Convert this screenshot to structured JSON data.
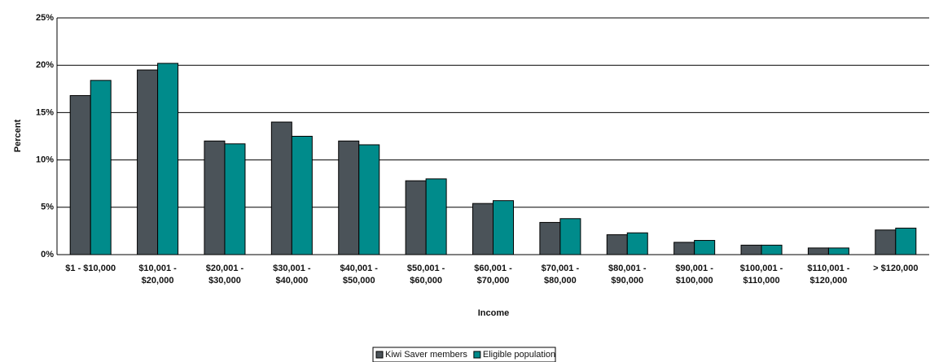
{
  "chart_data": {
    "type": "bar",
    "x_label": "Income",
    "y_label": "Percent",
    "categories": [
      "$1 - $10,000",
      "$10,001 - $20,000",
      "$20,001 - $30,000",
      "$30,001 - $40,000",
      "$40,001 - $50,000",
      "$50,001 - $60,000",
      "$60,001 - $70,000",
      "$70,001 - $80,000",
      "$80,001 - $90,000",
      "$90,001 - $100,000",
      "$100,001 - $110,000",
      "$110,001 - $120,000",
      "> $120,000"
    ],
    "series": [
      {
        "name": "Kiwi Saver members",
        "color": "#4b5359",
        "values": [
          16.8,
          19.5,
          12.0,
          14.0,
          12.0,
          7.8,
          5.4,
          3.4,
          2.1,
          1.3,
          1.0,
          0.7,
          2.6
        ]
      },
      {
        "name": "Eligible population",
        "color": "#008b8b",
        "values": [
          18.4,
          20.2,
          11.7,
          12.5,
          11.6,
          8.0,
          5.7,
          3.8,
          2.3,
          1.5,
          1.0,
          0.7,
          2.8
        ]
      }
    ],
    "ylim": [
      0,
      25
    ],
    "yticks": [
      {
        "value": 0,
        "label": "0%"
      },
      {
        "value": 5,
        "label": "5%"
      },
      {
        "value": 10,
        "label": "10%"
      },
      {
        "value": 15,
        "label": "15%"
      },
      {
        "value": 20,
        "label": "20%"
      },
      {
        "value": 25,
        "label": "25%"
      }
    ],
    "grid": true,
    "legend": "bottom"
  }
}
